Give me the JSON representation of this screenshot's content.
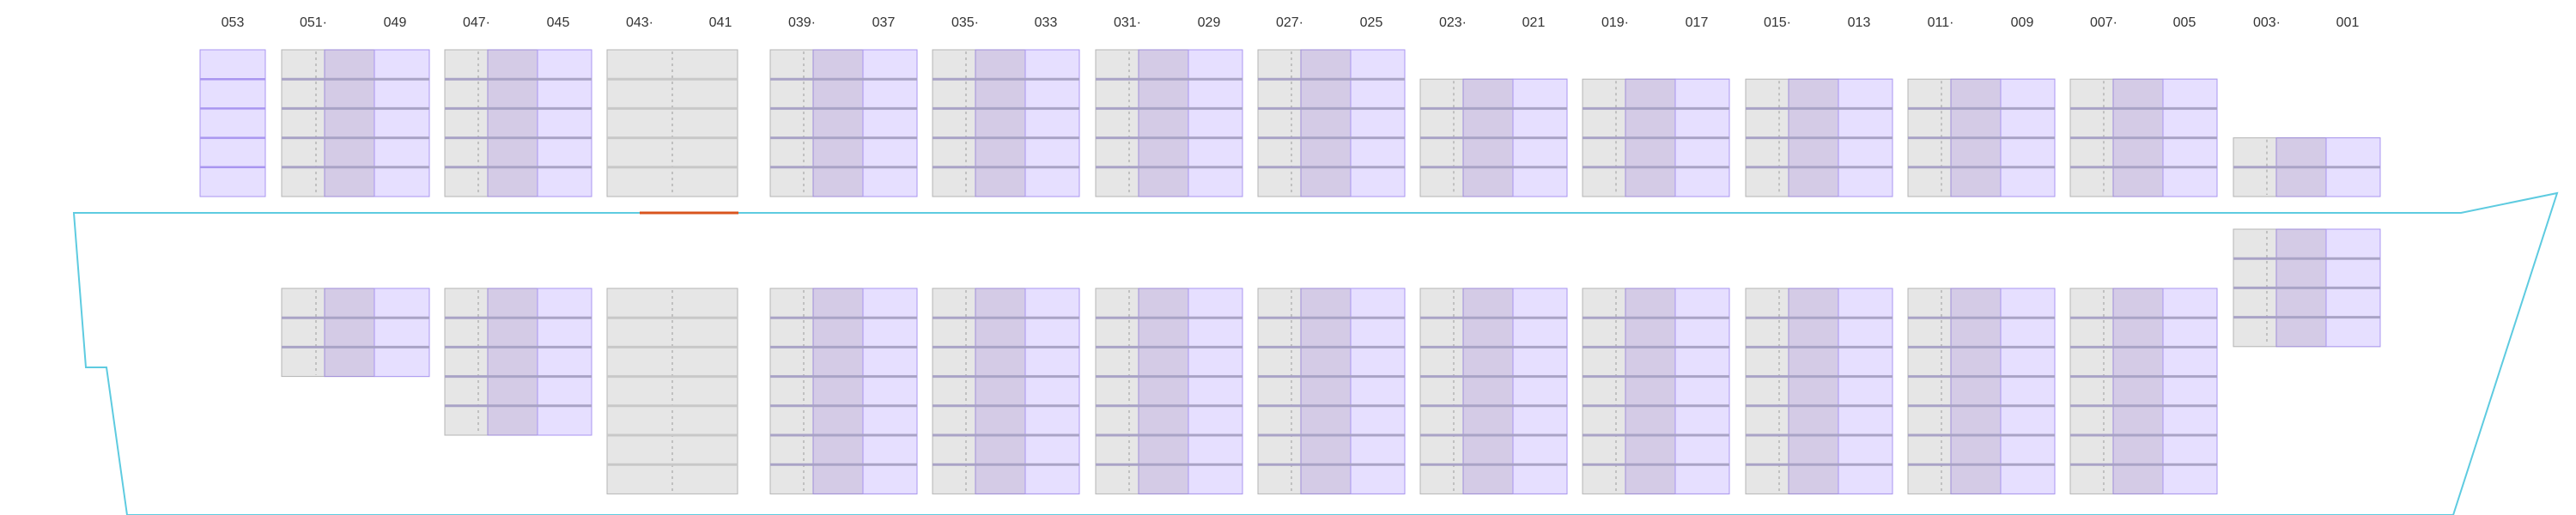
{
  "colors": {
    "hull": "#5ecbe0",
    "hatch": "#d8541e",
    "slot_fill": "#e6e6e6",
    "slot_border": "#b4b4b4",
    "slot_divider": "#c8c8c8",
    "reefer_fill": "#d4cbe6",
    "reefer_border": "#9f8dd8",
    "edge_fill": "#e6dfff",
    "edge_border": "#a996f0",
    "label": "#333333"
  },
  "bay_labels": [
    {
      "text": "053"
    },
    {
      "text": "051·"
    },
    {
      "text": "049"
    },
    {
      "text": "047·"
    },
    {
      "text": "045"
    },
    {
      "text": "043·"
    },
    {
      "text": "041"
    },
    {
      "text": "039·"
    },
    {
      "text": "037"
    },
    {
      "text": "035·"
    },
    {
      "text": "033"
    },
    {
      "text": "031·"
    },
    {
      "text": "029"
    },
    {
      "text": "027·"
    },
    {
      "text": "025"
    },
    {
      "text": "023·"
    },
    {
      "text": "021"
    },
    {
      "text": "019·"
    },
    {
      "text": "017"
    },
    {
      "text": "015·"
    },
    {
      "text": "013"
    },
    {
      "text": "011·"
    },
    {
      "text": "009"
    },
    {
      "text": "007·"
    },
    {
      "text": "005"
    },
    {
      "text": "003·"
    },
    {
      "text": "001"
    }
  ],
  "bays": [
    {
      "bay": "053",
      "deck_tiers": 5,
      "hold_tiers": 0,
      "style": "edge"
    },
    {
      "bay": "049",
      "deck_tiers": 5,
      "hold_tiers": 3,
      "style": "reefer"
    },
    {
      "bay": "045",
      "deck_tiers": 5,
      "hold_tiers": 5,
      "style": "reefer"
    },
    {
      "bay": "041",
      "deck_tiers": 5,
      "hold_tiers": 7,
      "style": "plain"
    },
    {
      "bay": "037",
      "deck_tiers": 5,
      "hold_tiers": 7,
      "style": "reefer"
    },
    {
      "bay": "033",
      "deck_tiers": 5,
      "hold_tiers": 7,
      "style": "reefer"
    },
    {
      "bay": "029",
      "deck_tiers": 5,
      "hold_tiers": 7,
      "style": "reefer"
    },
    {
      "bay": "025",
      "deck_tiers": 5,
      "hold_tiers": 7,
      "style": "reefer"
    },
    {
      "bay": "021",
      "deck_tiers": 4,
      "hold_tiers": 7,
      "style": "reefer"
    },
    {
      "bay": "017",
      "deck_tiers": 4,
      "hold_tiers": 7,
      "style": "reefer"
    },
    {
      "bay": "013",
      "deck_tiers": 4,
      "hold_tiers": 7,
      "style": "reefer"
    },
    {
      "bay": "009",
      "deck_tiers": 4,
      "hold_tiers": 7,
      "style": "reefer"
    },
    {
      "bay": "005",
      "deck_tiers": 4,
      "hold_tiers": 7,
      "style": "reefer"
    },
    {
      "bay": "001",
      "deck_tiers": 2,
      "hold_tiers": 4,
      "style": "reefer"
    }
  ]
}
